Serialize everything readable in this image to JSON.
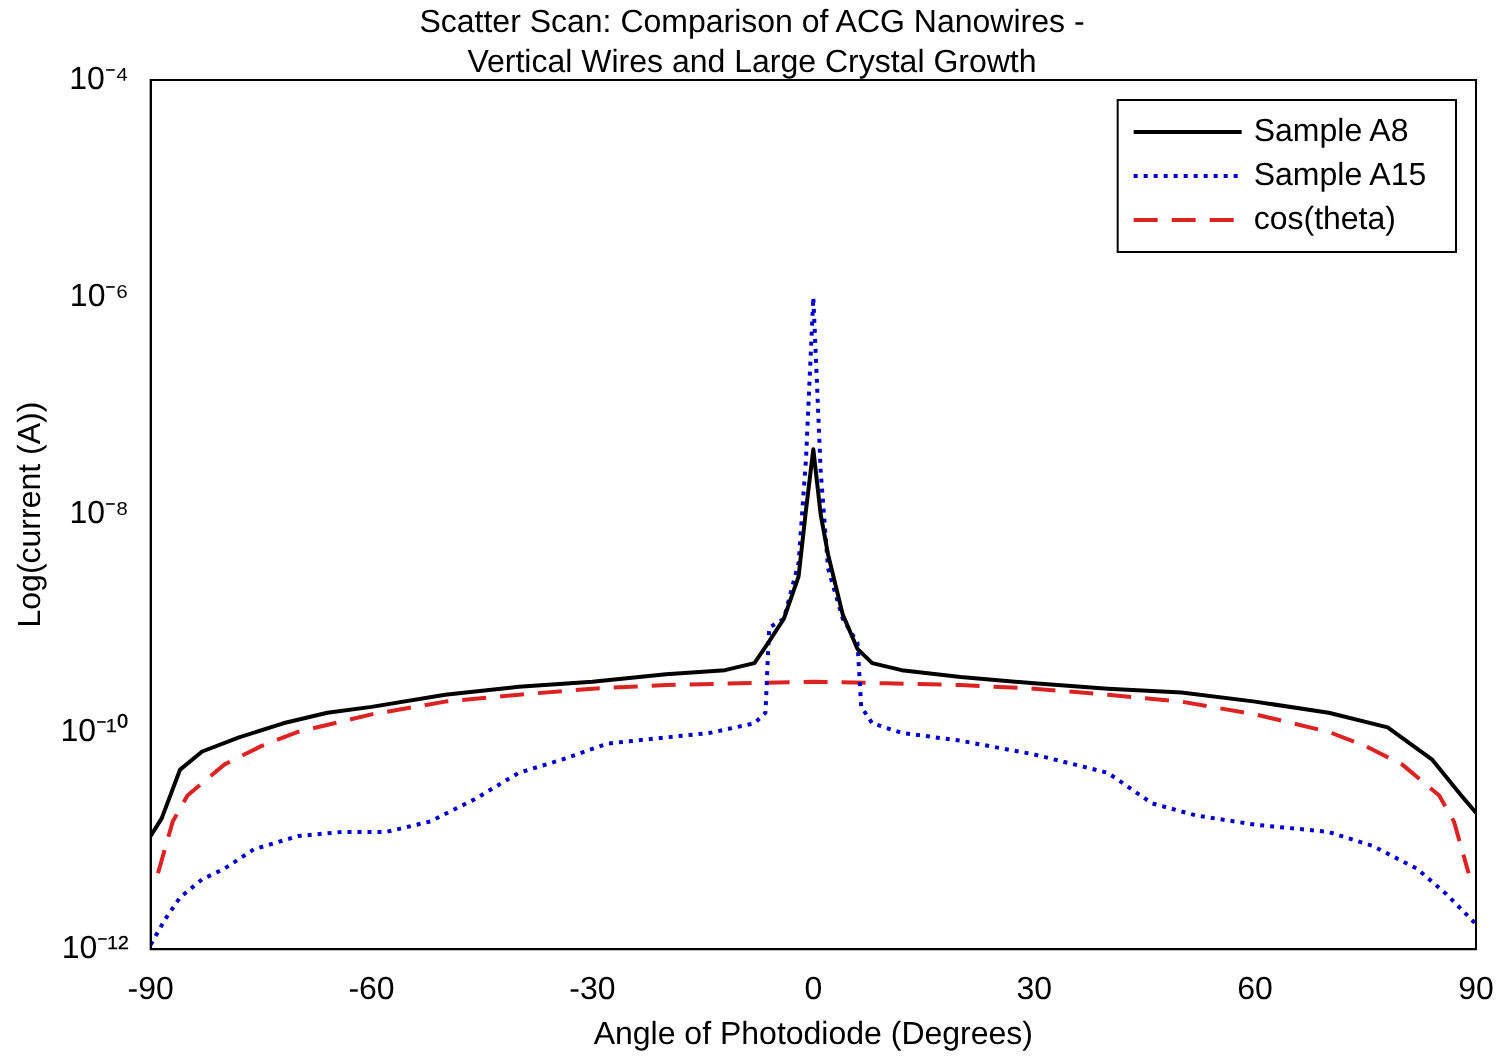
{
  "chart_data": {
    "type": "line",
    "title": "Scatter Scan: Comparison of ACG Nanowires - Vertical Wires and Large Crystal Growth",
    "xlabel": "Angle of Photodiode (Degrees)",
    "ylabel": "Log(current (A))",
    "log": "y",
    "grid": false,
    "legend": "top right",
    "marker": "none",
    "xlim": [
      -90,
      90
    ],
    "xticks": [
      -90,
      -60,
      -30,
      0,
      30,
      60,
      90
    ],
    "ylim": [
      1e-12,
      0.0001
    ],
    "yticks": [
      {
        "value": 1e-12,
        "label": "10⁻¹²"
      },
      {
        "value": 1e-10,
        "label": "10⁻¹⁰"
      },
      {
        "value": 1e-08,
        "label": "10⁻⁸"
      },
      {
        "value": 1e-06,
        "label": "10⁻⁶"
      },
      {
        "value": 0.0001,
        "label": "10⁻⁴"
      }
    ],
    "series": [
      {
        "name": "Sample A8",
        "color": "#000000",
        "line_style": "solid",
        "x": [
          -90,
          -88.5,
          -86,
          -83,
          -78,
          -72,
          -66,
          -60,
          -50,
          -40,
          -30,
          -20,
          -12,
          -8,
          -6,
          -4,
          -2,
          -1,
          0,
          1,
          2,
          4,
          6,
          8,
          12,
          20,
          30,
          40,
          50,
          60,
          70,
          78,
          84,
          88,
          90
        ],
        "values": [
          1.1e-11,
          1.6e-11,
          4.5e-11,
          6.6e-11,
          8.9e-11,
          1.2e-10,
          1.5e-10,
          1.7e-10,
          2.2e-10,
          2.6e-10,
          2.9e-10,
          3.4e-10,
          3.7e-10,
          4.3e-10,
          6.8e-10,
          1.1e-09,
          2.7e-09,
          1.1e-08,
          4e-08,
          1e-08,
          4.3e-09,
          1.2e-09,
          5.8e-10,
          4.3e-10,
          3.7e-10,
          3.2e-10,
          2.8e-10,
          2.5e-10,
          2.3e-10,
          1.9e-10,
          1.5e-10,
          1.1e-10,
          5.6e-11,
          2.6e-11,
          1.8e-11
        ]
      },
      {
        "name": "Sample A15",
        "color": "#0000cc",
        "line_style": "dotted",
        "x": [
          -90,
          -88,
          -86,
          -83,
          -80,
          -76,
          -70,
          -64,
          -58,
          -52,
          -46,
          -40,
          -34,
          -28,
          -20,
          -14,
          -8,
          -6.5,
          -6,
          -4,
          -2,
          -1,
          0,
          1,
          2,
          4,
          6,
          6.5,
          8,
          12,
          20,
          30,
          40,
          46,
          52,
          60,
          70,
          76,
          82,
          86,
          90
        ],
        "values": [
          1.1e-12,
          1.9e-12,
          3e-12,
          4.4e-12,
          5.5e-12,
          8.3e-12,
          1.1e-11,
          1.2e-11,
          1.2e-11,
          1.5e-11,
          2.4e-11,
          4.2e-11,
          5.6e-11,
          7.8e-11,
          8.9e-11,
          9.8e-11,
          1.2e-10,
          1.5e-10,
          9.1e-10,
          1.1e-09,
          3.6e-09,
          3.2e-08,
          1e-06,
          2.5e-08,
          3.2e-09,
          1.1e-09,
          6.6e-10,
          1.7e-10,
          1.2e-10,
          9.8e-11,
          8.3e-11,
          6.2e-11,
          4.2e-11,
          2.2e-11,
          1.7e-11,
          1.4e-11,
          1.2e-11,
          8.9e-12,
          5.5e-12,
          3.2e-12,
          1.7e-12
        ]
      },
      {
        "name": "cos(theta)",
        "color": "#dd2222",
        "line_style": "dashed",
        "x": [
          -89,
          -87,
          -85,
          -80,
          -75,
          -70,
          -60,
          -50,
          -40,
          -30,
          -20,
          -10,
          0,
          10,
          20,
          30,
          40,
          50,
          60,
          70,
          75,
          80,
          85,
          87,
          89
        ],
        "values": [
          5e-12,
          1.5e-11,
          2.6e-11,
          5e-11,
          7.4e-11,
          1e-10,
          1.45e-10,
          1.9e-10,
          2.2e-10,
          2.5e-10,
          2.7e-10,
          2.8e-10,
          2.9e-10,
          2.8e-10,
          2.7e-10,
          2.5e-10,
          2.2e-10,
          1.9e-10,
          1.45e-10,
          1e-10,
          7.4e-11,
          5e-11,
          2.6e-11,
          1.5e-11,
          5e-12
        ]
      }
    ]
  }
}
